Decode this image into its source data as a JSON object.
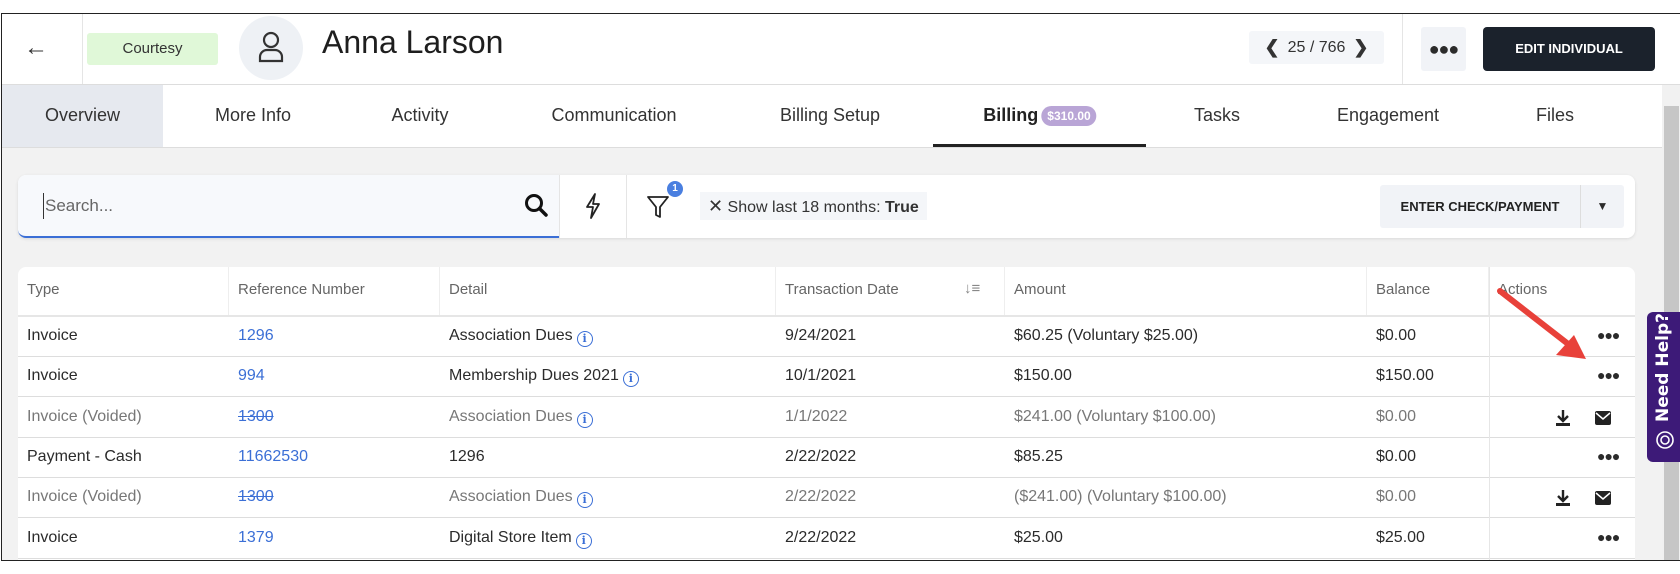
{
  "header": {
    "back_icon": "arrow-left-icon",
    "badge": "Courtesy",
    "avatar_icon": "user-icon",
    "name": "Anna Larson",
    "pager": {
      "current": "25",
      "total": "766",
      "text": "25 / 766"
    },
    "more_icon": "ellipsis-icon",
    "edit_label": "EDIT INDIVIDUAL"
  },
  "tabs": [
    {
      "label": "Overview"
    },
    {
      "label": "More Info"
    },
    {
      "label": "Activity"
    },
    {
      "label": "Communication"
    },
    {
      "label": "Billing Setup"
    },
    {
      "label": "Billing",
      "badge": "$310.00",
      "active": true
    },
    {
      "label": "Tasks"
    },
    {
      "label": "Engagement"
    },
    {
      "label": "Files"
    }
  ],
  "toolbar": {
    "search_placeholder": "Search...",
    "filter_count": "1",
    "filter_chip_label": "Show last 18 months:",
    "filter_chip_value": "True",
    "enter_label": "ENTER CHECK/PAYMENT"
  },
  "table": {
    "columns": [
      "Type",
      "Reference Number",
      "Detail",
      "Transaction Date",
      "Amount",
      "Balance",
      "Actions"
    ],
    "rows": [
      {
        "type": "Invoice",
        "ref": "1296",
        "detail": "Association Dues",
        "info": true,
        "date": "9/24/2021",
        "amount": "$60.25 (Voluntary $25.00)",
        "balance": "$0.00",
        "voided": false,
        "actions": "more"
      },
      {
        "type": "Invoice",
        "ref": "994",
        "detail": "Membership Dues 2021",
        "info": true,
        "date": "10/1/2021",
        "amount": "$150.00",
        "balance": "$150.00",
        "voided": false,
        "actions": "more"
      },
      {
        "type": "Invoice (Voided)",
        "ref": "1300",
        "detail": "Association Dues",
        "info": true,
        "date": "1/1/2022",
        "amount": "$241.00 (Voluntary $100.00)",
        "balance": "$0.00",
        "voided": true,
        "actions": "download-email"
      },
      {
        "type": "Payment - Cash",
        "ref": "11662530",
        "detail": "1296",
        "info": false,
        "date": "2/22/2022",
        "amount": "$85.25",
        "balance": "$0.00",
        "voided": false,
        "actions": "more"
      },
      {
        "type": "Invoice (Voided)",
        "ref": "1300",
        "detail": "Association Dues",
        "info": true,
        "date": "2/22/2022",
        "amount": "($241.00) (Voluntary $100.00)",
        "balance": "$0.00",
        "voided": true,
        "actions": "download-email"
      },
      {
        "type": "Invoice",
        "ref": "1379",
        "detail": "Digital Store Item",
        "info": true,
        "date": "2/22/2022",
        "amount": "$25.00",
        "balance": "$25.00",
        "voided": false,
        "actions": "more"
      }
    ]
  },
  "help": {
    "label": "Need Help?",
    "icon": "lifebuoy-icon"
  },
  "colors": {
    "accent": "#3b6fd6",
    "edit_button": "#1b222c",
    "badge_bg": "#e0f8d8",
    "billing_pill": "#b9a5d6",
    "help_bg": "#3d1a78",
    "annotation_arrow": "#e8413a"
  }
}
